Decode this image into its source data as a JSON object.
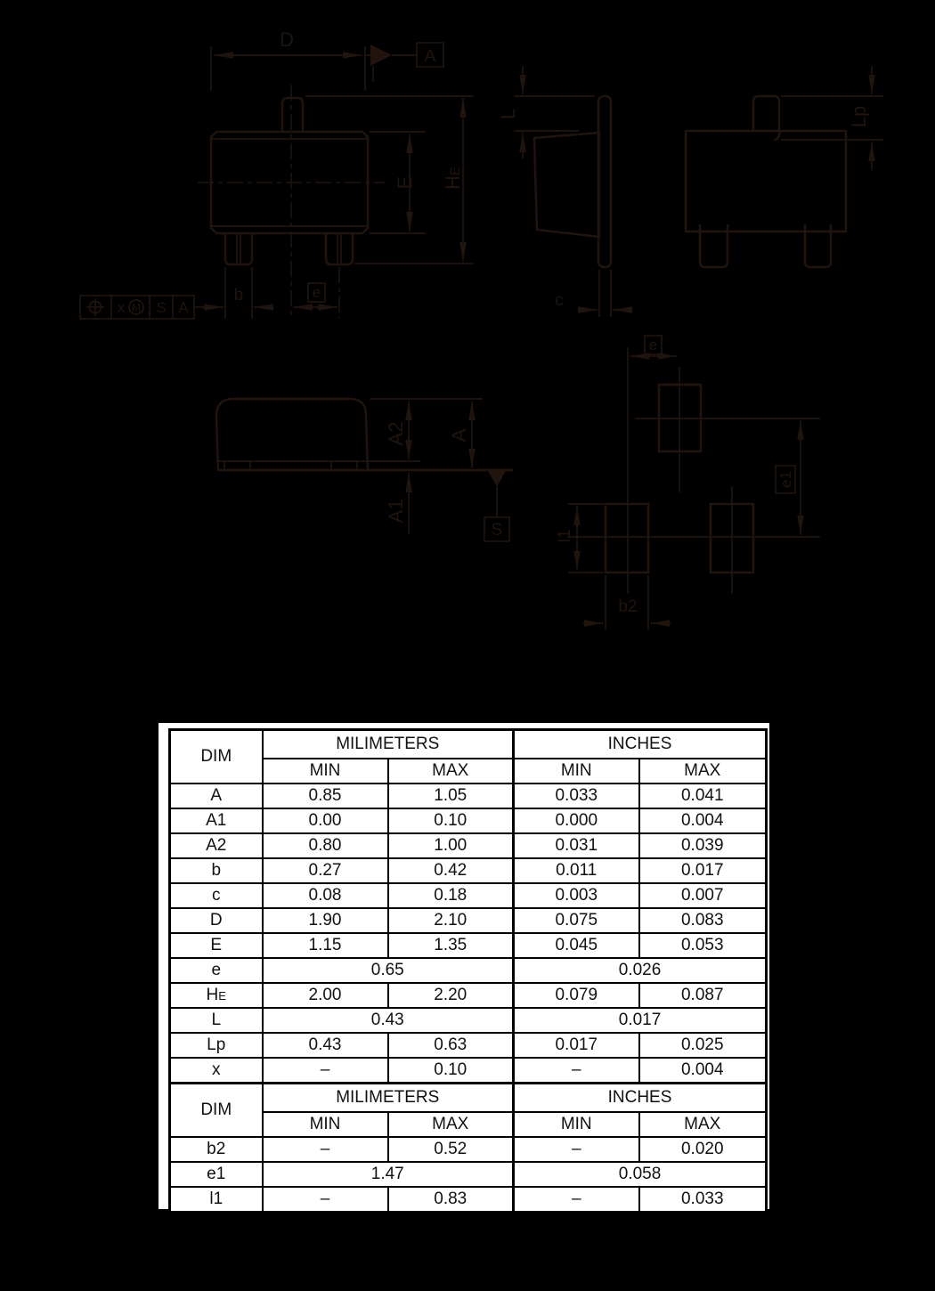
{
  "colors": {
    "background": "#000000",
    "line": "#20140d",
    "paper": "#ffffff",
    "table_text": "#111111",
    "table_border": "#000000"
  },
  "drawing": {
    "labels": {
      "d": "D",
      "section_a": "A",
      "e_body": "E",
      "he_main": "H",
      "he_sub": "E",
      "l": "L",
      "lp": "Lp",
      "c": "c",
      "b": "b",
      "e_pitch": "e",
      "a2": "A2",
      "a": "A",
      "a1": "A1",
      "datum_s": "S",
      "land_e": "e",
      "land_e1": "e1",
      "land_l1": "l1",
      "land_b2": "b2"
    },
    "fcf": {
      "tolerance": "x",
      "modifier": "M",
      "datum1": "S",
      "datum2": "A"
    }
  },
  "table1": {
    "header": {
      "dim": "DIM",
      "mm": "MILIMETERS",
      "inches": "INCHES",
      "min": "MIN",
      "max": "MAX"
    },
    "rows": [
      {
        "dim": "A",
        "mm_min": "0.85",
        "mm_max": "1.05",
        "in_min": "0.033",
        "in_max": "0.041"
      },
      {
        "dim": "A1",
        "mm_min": "0.00",
        "mm_max": "0.10",
        "in_min": "0.000",
        "in_max": "0.004"
      },
      {
        "dim": "A2",
        "mm_min": "0.80",
        "mm_max": "1.00",
        "in_min": "0.031",
        "in_max": "0.039"
      },
      {
        "dim": "b",
        "mm_min": "0.27",
        "mm_max": "0.42",
        "in_min": "0.011",
        "in_max": "0.017"
      },
      {
        "dim": "c",
        "mm_min": "0.08",
        "mm_max": "0.18",
        "in_min": "0.003",
        "in_max": "0.007"
      },
      {
        "dim": "D",
        "mm_min": "1.90",
        "mm_max": "2.10",
        "in_min": "0.075",
        "in_max": "0.083"
      },
      {
        "dim": "E",
        "mm_min": "1.15",
        "mm_max": "1.35",
        "in_min": "0.045",
        "in_max": "0.053"
      },
      {
        "dim": "e",
        "mm": "0.65",
        "in": "0.026"
      },
      {
        "dim": "H",
        "dim_sub": "E",
        "mm_min": "2.00",
        "mm_max": "2.20",
        "in_min": "0.079",
        "in_max": "0.087"
      },
      {
        "dim": "L",
        "mm": "0.43",
        "in": "0.017"
      },
      {
        "dim": "Lp",
        "mm_min": "0.43",
        "mm_max": "0.63",
        "in_min": "0.017",
        "in_max": "0.025"
      },
      {
        "dim": "x",
        "mm_min": "–",
        "mm_max": "0.10",
        "in_min": "–",
        "in_max": "0.004"
      }
    ]
  },
  "table2": {
    "header": {
      "dim": "DIM",
      "mm": "MILIMETERS",
      "inches": "INCHES",
      "min": "MIN",
      "max": "MAX"
    },
    "rows": [
      {
        "dim": "b2",
        "mm_min": "–",
        "mm_max": "0.52",
        "in_min": "–",
        "in_max": "0.020"
      },
      {
        "dim": "e1",
        "mm": "1.47",
        "in": "0.058"
      },
      {
        "dim": "l1",
        "mm_min": "–",
        "mm_max": "0.83",
        "in_min": "–",
        "in_max": "0.033"
      }
    ]
  }
}
